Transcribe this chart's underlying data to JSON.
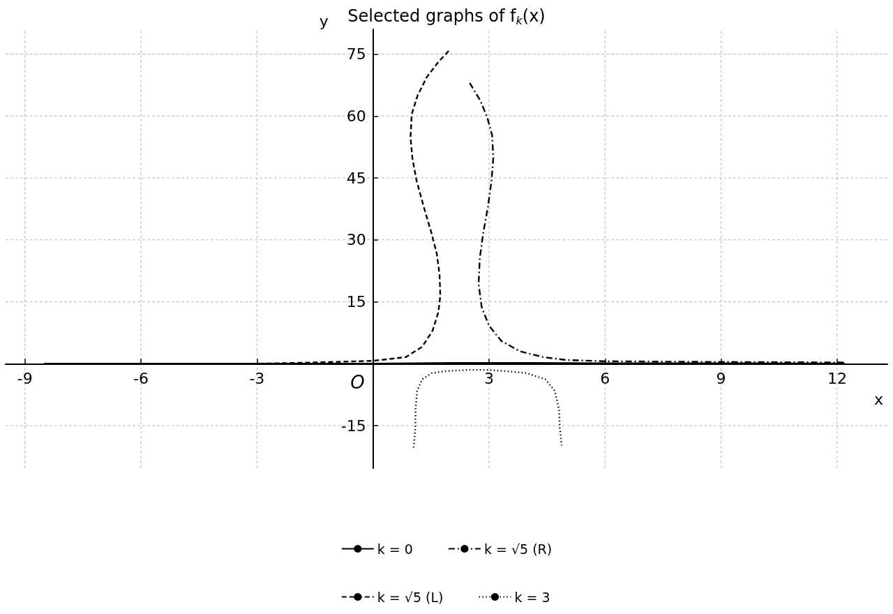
{
  "chart_data": {
    "type": "line",
    "title": "Selected graphs of f$_{k}$(x)",
    "xlabel": "x",
    "ylabel": "y",
    "xlim": [
      -9.5,
      13.3
    ],
    "ylim": [
      -25.3,
      81
    ],
    "xticks": [
      -9,
      -6,
      -3,
      3,
      6,
      9,
      12
    ],
    "yticks": [
      -15,
      15,
      30,
      45,
      60,
      75
    ],
    "grid": true,
    "legend": "bottom",
    "marker": "none",
    "annotations": [
      {
        "text": "O",
        "x": 0,
        "y": 0
      }
    ],
    "series": [
      {
        "name": "k = 0",
        "color": "#000000",
        "line_style": "solid",
        "x": [
          -8.5,
          -3,
          0,
          1,
          2,
          3,
          4,
          6,
          9,
          12.2
        ],
        "values": [
          0,
          0,
          0,
          0.1,
          0.2,
          0.2,
          0.2,
          0.1,
          0.1,
          0
        ]
      },
      {
        "name": "k = √5 (L)",
        "color": "#000000",
        "line_style": "dashed",
        "x": [
          -8.5,
          -3,
          -1.55,
          0,
          0.85,
          1.27,
          1.54,
          1.69,
          1.74,
          1.72,
          1.65,
          1.51,
          1.3,
          1.12,
          1.02,
          0.97,
          1.0,
          1.15,
          1.39,
          1.69,
          1.98
        ],
        "values": [
          0,
          0,
          0.3,
          0.7,
          1.6,
          4.1,
          8.0,
          12.5,
          16.5,
          21.6,
          26.6,
          31.7,
          38.4,
          44.6,
          49.7,
          54.8,
          60.4,
          64.9,
          69.4,
          73.1,
          76.0
        ]
      },
      {
        "name": "k = √5 (R)",
        "color": "#000000",
        "line_style": "dashdot",
        "x": [
          2.5,
          2.77,
          2.95,
          3.08,
          3.11,
          3.06,
          2.97,
          2.85,
          2.76,
          2.73,
          2.81,
          3.0,
          3.32,
          3.8,
          4.4,
          5.0,
          6.0,
          7.6,
          9.8,
          12.2
        ],
        "values": [
          68.0,
          63.8,
          59.8,
          55.3,
          49.7,
          44.1,
          37.9,
          31.7,
          25.5,
          19.3,
          13.7,
          9.2,
          5.5,
          3.0,
          1.6,
          0.9,
          0.6,
          0.5,
          0.4,
          0.3
        ]
      },
      {
        "name": "k = 3",
        "color": "#000000",
        "line_style": "dotted",
        "x": [
          1.05,
          1.09,
          1.1,
          1.14,
          1.27,
          1.51,
          1.87,
          2.47,
          2.95,
          3.44,
          3.98,
          4.46,
          4.7,
          4.81,
          4.83,
          4.88
        ],
        "values": [
          -20.3,
          -16.2,
          -11.1,
          -6.6,
          -3.8,
          -2.3,
          -1.8,
          -1.5,
          -1.5,
          -1.8,
          -2.3,
          -3.8,
          -6.6,
          -11.1,
          -15.6,
          -19.8
        ]
      }
    ]
  }
}
